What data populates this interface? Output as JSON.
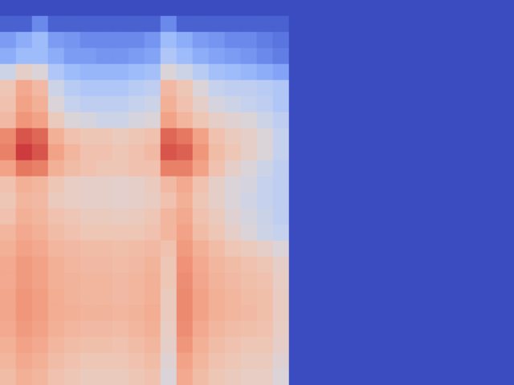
{
  "chart_data": {
    "type": "heatmap",
    "color": "coolwarm",
    "tick_labels": false,
    "zlim": [
      0,
      1
    ],
    "cells": [
      [
        0,
        0,
        0,
        0,
        0,
        0,
        0,
        0,
        0,
        0,
        0,
        0,
        0,
        0,
        0,
        0,
        0,
        0,
        0,
        0,
        0,
        0,
        0,
        0,
        0,
        0,
        0,
        0,
        0,
        0,
        0,
        0
      ],
      [
        0.05,
        0.05,
        0.15,
        0.05,
        0.05,
        0.05,
        0.05,
        0.05,
        0.05,
        0.05,
        0.15,
        0.05,
        0.05,
        0.05,
        0.05,
        0.05,
        0.05,
        0.05,
        0,
        0,
        0,
        0,
        0,
        0,
        0,
        0,
        0,
        0,
        0,
        0,
        0,
        0
      ],
      [
        0.2,
        0.25,
        0.3,
        0.2,
        0.18,
        0.15,
        0.15,
        0.15,
        0.15,
        0.18,
        0.3,
        0.25,
        0.2,
        0.18,
        0.15,
        0.15,
        0.12,
        0.1,
        0,
        0,
        0,
        0,
        0,
        0,
        0,
        0,
        0,
        0,
        0,
        0,
        0,
        0
      ],
      [
        0.25,
        0.3,
        0.3,
        0.25,
        0.2,
        0.2,
        0.18,
        0.18,
        0.2,
        0.22,
        0.35,
        0.3,
        0.25,
        0.22,
        0.2,
        0.18,
        0.15,
        0.12,
        0,
        0,
        0,
        0,
        0,
        0,
        0,
        0,
        0,
        0,
        0,
        0,
        0,
        0
      ],
      [
        0.45,
        0.55,
        0.5,
        0.35,
        0.3,
        0.28,
        0.28,
        0.28,
        0.3,
        0.32,
        0.5,
        0.45,
        0.38,
        0.32,
        0.3,
        0.28,
        0.25,
        0.22,
        0,
        0,
        0,
        0,
        0,
        0,
        0,
        0,
        0,
        0,
        0,
        0,
        0,
        0
      ],
      [
        0.6,
        0.7,
        0.65,
        0.45,
        0.38,
        0.35,
        0.35,
        0.35,
        0.38,
        0.4,
        0.65,
        0.6,
        0.5,
        0.42,
        0.4,
        0.4,
        0.38,
        0.35,
        0,
        0,
        0,
        0,
        0,
        0,
        0,
        0,
        0,
        0,
        0,
        0,
        0,
        0
      ],
      [
        0.62,
        0.72,
        0.68,
        0.5,
        0.42,
        0.4,
        0.4,
        0.4,
        0.42,
        0.45,
        0.68,
        0.62,
        0.55,
        0.48,
        0.45,
        0.42,
        0.4,
        0.35,
        0,
        0,
        0,
        0,
        0,
        0,
        0,
        0,
        0,
        0,
        0,
        0,
        0,
        0
      ],
      [
        0.65,
        0.75,
        0.72,
        0.58,
        0.5,
        0.48,
        0.45,
        0.45,
        0.48,
        0.5,
        0.72,
        0.66,
        0.6,
        0.55,
        0.52,
        0.5,
        0.45,
        0.4,
        0,
        0,
        0,
        0,
        0,
        0,
        0,
        0,
        0,
        0,
        0,
        0,
        0,
        0
      ],
      [
        0.78,
        0.88,
        0.85,
        0.68,
        0.62,
        0.6,
        0.6,
        0.58,
        0.6,
        0.62,
        0.85,
        0.82,
        0.72,
        0.62,
        0.58,
        0.55,
        0.5,
        0.42,
        0,
        0,
        0,
        0,
        0,
        0,
        0,
        0,
        0,
        0,
        0,
        0,
        0,
        0
      ],
      [
        0.8,
        0.92,
        0.88,
        0.72,
        0.66,
        0.62,
        0.62,
        0.6,
        0.62,
        0.65,
        0.88,
        0.86,
        0.75,
        0.64,
        0.6,
        0.55,
        0.5,
        0.42,
        0,
        0,
        0,
        0,
        0,
        0,
        0,
        0,
        0,
        0,
        0,
        0,
        0,
        0
      ],
      [
        0.72,
        0.82,
        0.8,
        0.68,
        0.64,
        0.62,
        0.6,
        0.6,
        0.62,
        0.62,
        0.8,
        0.8,
        0.72,
        0.62,
        0.55,
        0.5,
        0.45,
        0.4,
        0,
        0,
        0,
        0,
        0,
        0,
        0,
        0,
        0,
        0,
        0,
        0,
        0,
        0
      ],
      [
        0.62,
        0.68,
        0.66,
        0.6,
        0.56,
        0.55,
        0.55,
        0.54,
        0.55,
        0.58,
        0.65,
        0.7,
        0.62,
        0.55,
        0.5,
        0.48,
        0.42,
        0.4,
        0,
        0,
        0,
        0,
        0,
        0,
        0,
        0,
        0,
        0,
        0,
        0,
        0,
        0
      ],
      [
        0.6,
        0.66,
        0.65,
        0.58,
        0.56,
        0.55,
        0.55,
        0.54,
        0.55,
        0.57,
        0.62,
        0.68,
        0.6,
        0.55,
        0.5,
        0.46,
        0.42,
        0.4,
        0,
        0,
        0,
        0,
        0,
        0,
        0,
        0,
        0,
        0,
        0,
        0,
        0,
        0
      ],
      [
        0.62,
        0.68,
        0.66,
        0.62,
        0.6,
        0.58,
        0.58,
        0.57,
        0.58,
        0.6,
        0.66,
        0.7,
        0.62,
        0.58,
        0.52,
        0.48,
        0.44,
        0.4,
        0,
        0,
        0,
        0,
        0,
        0,
        0,
        0,
        0,
        0,
        0,
        0,
        0,
        0
      ],
      [
        0.66,
        0.7,
        0.68,
        0.64,
        0.62,
        0.6,
        0.6,
        0.6,
        0.6,
        0.62,
        0.66,
        0.72,
        0.64,
        0.6,
        0.55,
        0.5,
        0.45,
        0.42,
        0,
        0,
        0,
        0,
        0,
        0,
        0,
        0,
        0,
        0,
        0,
        0,
        0,
        0
      ],
      [
        0.68,
        0.72,
        0.7,
        0.66,
        0.65,
        0.64,
        0.64,
        0.63,
        0.64,
        0.65,
        0.62,
        0.74,
        0.68,
        0.64,
        0.6,
        0.58,
        0.55,
        0.5,
        0,
        0,
        0,
        0,
        0,
        0,
        0,
        0,
        0,
        0,
        0,
        0,
        0,
        0
      ],
      [
        0.7,
        0.74,
        0.72,
        0.68,
        0.66,
        0.65,
        0.65,
        0.64,
        0.65,
        0.67,
        0.6,
        0.76,
        0.7,
        0.66,
        0.64,
        0.62,
        0.6,
        0.55,
        0,
        0,
        0,
        0,
        0,
        0,
        0,
        0,
        0,
        0,
        0,
        0,
        0,
        0
      ],
      [
        0.7,
        0.74,
        0.72,
        0.68,
        0.67,
        0.66,
        0.66,
        0.65,
        0.66,
        0.68,
        0.6,
        0.77,
        0.71,
        0.67,
        0.65,
        0.63,
        0.62,
        0.56,
        0,
        0,
        0,
        0,
        0,
        0,
        0,
        0,
        0,
        0,
        0,
        0,
        0,
        0
      ],
      [
        0.71,
        0.75,
        0.73,
        0.69,
        0.67,
        0.66,
        0.66,
        0.65,
        0.66,
        0.68,
        0.58,
        0.78,
        0.72,
        0.68,
        0.66,
        0.64,
        0.63,
        0.57,
        0,
        0,
        0,
        0,
        0,
        0,
        0,
        0,
        0,
        0,
        0,
        0,
        0,
        0
      ],
      [
        0.71,
        0.75,
        0.73,
        0.69,
        0.68,
        0.67,
        0.67,
        0.66,
        0.67,
        0.69,
        0.58,
        0.78,
        0.72,
        0.68,
        0.66,
        0.65,
        0.63,
        0.57,
        0,
        0,
        0,
        0,
        0,
        0,
        0,
        0,
        0,
        0,
        0,
        0,
        0,
        0
      ],
      [
        0.7,
        0.74,
        0.72,
        0.68,
        0.66,
        0.65,
        0.65,
        0.64,
        0.66,
        0.68,
        0.56,
        0.77,
        0.7,
        0.66,
        0.64,
        0.63,
        0.62,
        0.56,
        0,
        0,
        0,
        0,
        0,
        0,
        0,
        0,
        0,
        0,
        0,
        0,
        0,
        0
      ],
      [
        0.68,
        0.72,
        0.7,
        0.66,
        0.64,
        0.63,
        0.63,
        0.62,
        0.64,
        0.66,
        0.55,
        0.75,
        0.68,
        0.64,
        0.62,
        0.6,
        0.6,
        0.55,
        0,
        0,
        0,
        0,
        0,
        0,
        0,
        0,
        0,
        0,
        0,
        0,
        0,
        0
      ],
      [
        0.66,
        0.7,
        0.68,
        0.64,
        0.62,
        0.6,
        0.6,
        0.6,
        0.62,
        0.64,
        0.52,
        0.72,
        0.66,
        0.62,
        0.6,
        0.58,
        0.58,
        0.52,
        0,
        0,
        0,
        0,
        0,
        0,
        0,
        0,
        0,
        0,
        0,
        0,
        0,
        0
      ],
      [
        0.64,
        0.68,
        0.66,
        0.62,
        0.6,
        0.58,
        0.58,
        0.58,
        0.6,
        0.62,
        0.5,
        0.7,
        0.64,
        0.6,
        0.58,
        0.56,
        0.56,
        0.5,
        0,
        0,
        0,
        0,
        0,
        0,
        0,
        0,
        0,
        0,
        0,
        0,
        0,
        0
      ]
    ]
  }
}
